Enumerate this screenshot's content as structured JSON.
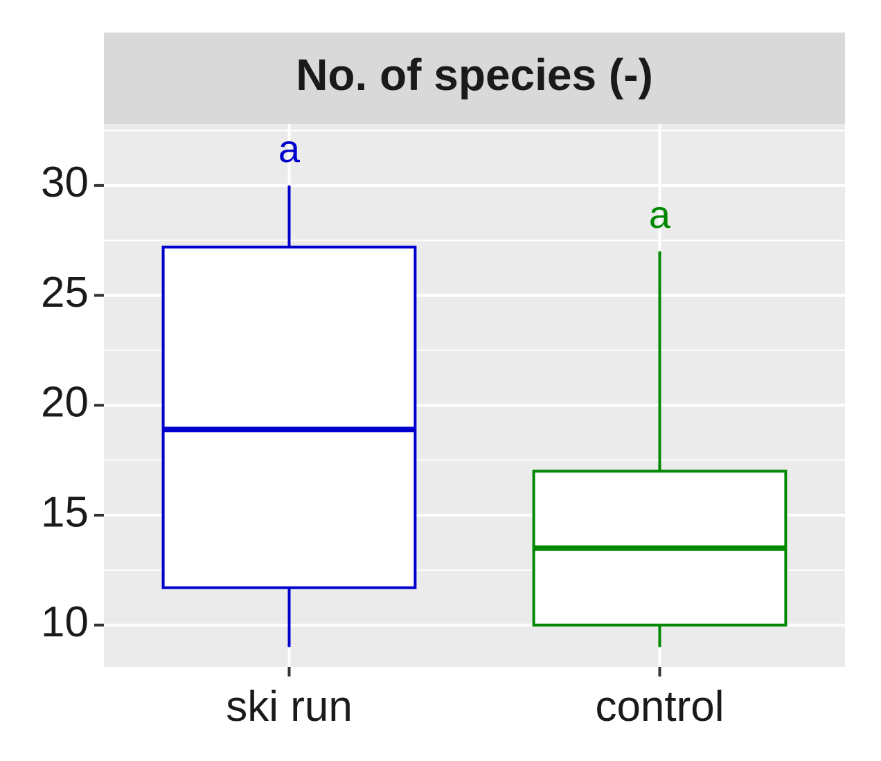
{
  "chart_data": {
    "type": "boxplot",
    "title": "",
    "facet_label": "No. of species (-)",
    "xlabel": "",
    "ylabel": "",
    "ylim": [
      8.1,
      32.8
    ],
    "yticks": [
      10,
      15,
      20,
      25,
      30
    ],
    "ytick_labels": [
      "10",
      "15",
      "20",
      "25",
      "30"
    ],
    "grid": true,
    "legend": "none",
    "categories": [
      "ski run",
      "control"
    ],
    "boxes": [
      {
        "category": "ski run",
        "color": "#0000cc",
        "whisker_low": 9,
        "q1": 11.7,
        "median": 18.9,
        "q3": 27.2,
        "whisker_high": 30,
        "letter": "a"
      },
      {
        "category": "control",
        "color": "#008800",
        "whisker_low": 9,
        "q1": 10,
        "median": 13.5,
        "q3": 17,
        "whisker_high": 27,
        "letter": "a"
      }
    ]
  }
}
